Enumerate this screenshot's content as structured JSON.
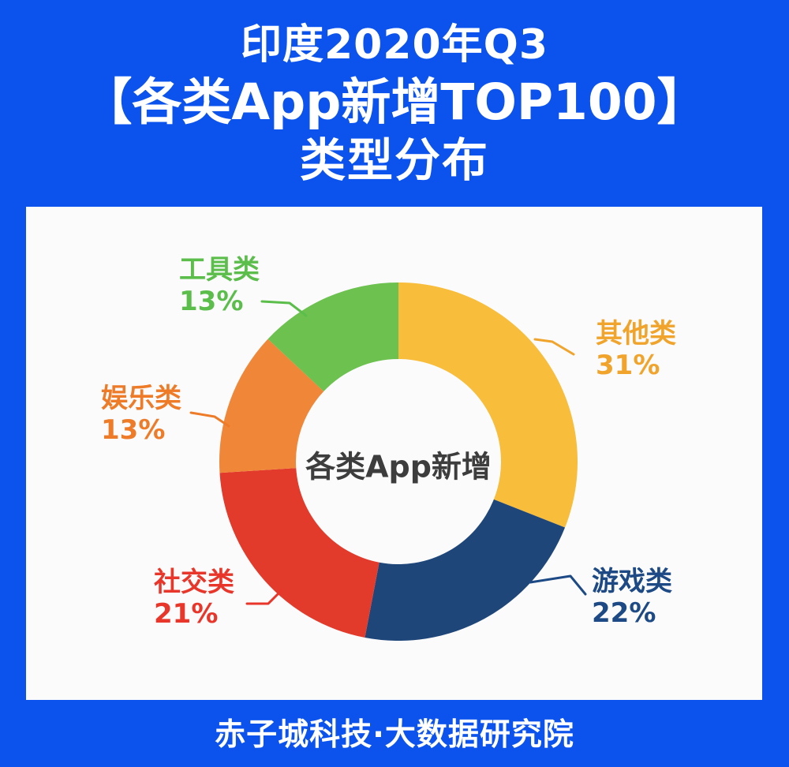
{
  "page": {
    "background_color": "#0C53EE",
    "title_line1": "印度2020年Q3",
    "title_line2": "【各类App新增TOP100】",
    "title_line3": "类型分布",
    "footer": "赤子城科技·大数据研究院"
  },
  "chart_data": {
    "type": "pie",
    "subtype": "donut",
    "title": "印度2020年Q3 各类App新增TOP100 类型分布",
    "center_label": "各类App新增",
    "unit": "%",
    "start_angle_deg": 0,
    "direction": "clockwise",
    "legend_position": "outside-callouts",
    "categories": [
      "其他类",
      "游戏类",
      "社交类",
      "娱乐类",
      "工具类"
    ],
    "values": [
      31,
      22,
      21,
      13,
      13
    ],
    "slices": [
      {
        "label": "其他类",
        "value": 31,
        "value_label": "31%",
        "color": "#F7BD3B",
        "text_color": "#F0A42C"
      },
      {
        "label": "游戏类",
        "value": 22,
        "value_label": "22%",
        "color": "#1F4679",
        "text_color": "#1D4A85"
      },
      {
        "label": "社交类",
        "value": 21,
        "value_label": "21%",
        "color": "#E23A2B",
        "text_color": "#E8372A"
      },
      {
        "label": "娱乐类",
        "value": 13,
        "value_label": "13%",
        "color": "#F08637",
        "text_color": "#EE7B28"
      },
      {
        "label": "工具类",
        "value": 13,
        "value_label": "13%",
        "color": "#6CC14F",
        "text_color": "#5BBD4A"
      }
    ]
  }
}
